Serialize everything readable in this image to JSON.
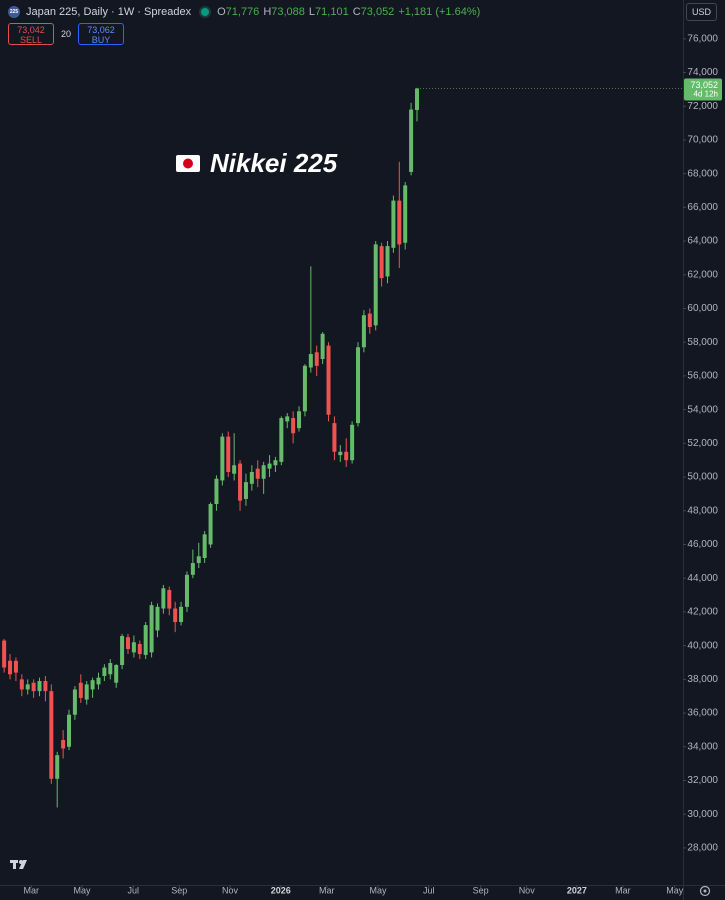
{
  "header": {
    "icon": "225",
    "symbol": "Japan 225, Daily · 1W · Spreadex",
    "ohlc": [
      {
        "label": "O",
        "value": "71,776"
      },
      {
        "label": "H",
        "value": "73,088"
      },
      {
        "label": "L",
        "value": "71,101"
      },
      {
        "label": "C",
        "value": "73,052"
      }
    ],
    "change": "+1,181 (+1.64%)"
  },
  "order_panel": {
    "sell_price": "73,042",
    "sell": "SELL",
    "quantity": "20",
    "buy_price": "73,062",
    "buy": "BUY"
  },
  "chart_data": {
    "type": "candlestick",
    "annotation": "Nikkei 225",
    "currency": "USD",
    "last_price_label": "73,052",
    "countdown": "4d 12h",
    "up_color": "#66bb6a",
    "down_color": "#ef5350",
    "grid": false,
    "x": [
      0,
      1,
      2,
      3,
      4,
      5,
      6,
      7,
      8,
      9,
      10,
      11,
      12,
      13,
      14,
      15,
      16,
      17,
      18,
      19,
      20,
      21,
      22,
      23,
      24,
      25,
      26,
      27,
      28,
      29,
      30,
      31,
      32,
      33,
      34,
      35,
      36,
      37,
      38,
      39,
      40,
      41,
      42,
      43,
      44,
      45,
      46,
      47,
      48,
      49,
      50,
      51,
      52,
      53,
      54,
      55,
      56,
      57,
      58,
      59,
      60,
      61,
      62,
      63,
      64,
      65,
      66,
      67,
      68,
      69,
      70
    ],
    "open": [
      40300,
      39100,
      39100,
      38000,
      37400,
      37800,
      37300,
      37900,
      37300,
      32100,
      34400,
      34000,
      35900,
      37800,
      36800,
      37400,
      37700,
      38200,
      38300,
      37800,
      38850,
      40500,
      39600,
      40100,
      39450,
      39600,
      40900,
      42200,
      43300,
      42200,
      41400,
      42300,
      44200,
      44900,
      45200,
      46000,
      48400,
      49800,
      52400,
      50200,
      50800,
      48700,
      49600,
      50500,
      49900,
      50500,
      50700,
      50900,
      53300,
      53500,
      52900,
      53900,
      56500,
      57400,
      57000,
      57800,
      53200,
      51300,
      51500,
      51000,
      53200,
      57700,
      59700,
      59000,
      63700,
      61900,
      63600,
      66400,
      63900,
      68100,
      71776
    ],
    "high": [
      40400,
      39500,
      39300,
      38300,
      38000,
      38000,
      38100,
      38200,
      37700,
      33700,
      35000,
      36200,
      37600,
      38300,
      37900,
      38100,
      38400,
      38900,
      39200,
      38900,
      40700,
      40700,
      40600,
      40300,
      41400,
      42600,
      42500,
      43600,
      43500,
      42600,
      42600,
      44400,
      45700,
      46100,
      46800,
      48500,
      50100,
      52600,
      52700,
      52600,
      51000,
      50200,
      50700,
      51000,
      50900,
      51300,
      51200,
      53600,
      53800,
      53900,
      54200,
      56700,
      62500,
      57800,
      58600,
      58000,
      53600,
      51900,
      52300,
      53300,
      58000,
      59900,
      60000,
      64000,
      63900,
      64000,
      66700,
      68700,
      67500,
      72200,
      73088
    ],
    "low": [
      38400,
      38000,
      37900,
      37000,
      37100,
      36900,
      37000,
      36700,
      31800,
      30400,
      33300,
      33800,
      35600,
      36600,
      36500,
      36900,
      37400,
      37900,
      38000,
      37500,
      38600,
      39500,
      39300,
      39200,
      39200,
      39300,
      40500,
      41900,
      41800,
      40800,
      41200,
      42000,
      44000,
      44600,
      44900,
      45800,
      48000,
      49500,
      50000,
      49800,
      48000,
      48300,
      49200,
      49400,
      49000,
      50000,
      50300,
      50700,
      52900,
      52000,
      52700,
      53600,
      56200,
      56000,
      56700,
      53300,
      51000,
      50900,
      50600,
      50800,
      53000,
      57400,
      58500,
      58700,
      61300,
      61500,
      63300,
      62400,
      63500,
      67900,
      71101
    ],
    "close": [
      38700,
      38300,
      38400,
      37400,
      37700,
      37300,
      37900,
      37300,
      32100,
      33500,
      33900,
      35900,
      37400,
      36900,
      37700,
      37950,
      38100,
      38700,
      38970,
      38850,
      40570,
      39800,
      40200,
      39500,
      41220,
      42400,
      42300,
      43400,
      42200,
      41400,
      42300,
      44200,
      44900,
      45300,
      46600,
      48400,
      49900,
      52400,
      50300,
      50700,
      48600,
      49700,
      50300,
      49900,
      50700,
      50800,
      51000,
      53500,
      53600,
      52600,
      53900,
      56600,
      57300,
      56600,
      58500,
      53700,
      51500,
      51500,
      51000,
      53100,
      57700,
      59600,
      58900,
      63800,
      61800,
      63700,
      66400,
      63800,
      67300,
      71800,
      73052
    ],
    "xlim": [
      -0.7,
      115.1
    ],
    "xticks": [
      {
        "value": 4.6,
        "label": "Mar"
      },
      {
        "value": 13.2,
        "label": "May"
      },
      {
        "value": 21.9,
        "label": "Jul"
      },
      {
        "value": 29.7,
        "label": "Sep"
      },
      {
        "value": 38.3,
        "label": "Nov"
      },
      {
        "value": 46.9,
        "label": "2026"
      },
      {
        "value": 54.7,
        "label": "Mar"
      },
      {
        "value": 63.4,
        "label": "May"
      },
      {
        "value": 72.0,
        "label": "Jul"
      },
      {
        "value": 80.8,
        "label": "Sep"
      },
      {
        "value": 88.6,
        "label": "Nov"
      },
      {
        "value": 97.1,
        "label": "2027"
      },
      {
        "value": 104.9,
        "label": "Mar"
      },
      {
        "value": 113.7,
        "label": "May"
      }
    ],
    "ylim": [
      25800,
      78300
    ],
    "yticks": [
      {
        "value": 28000,
        "label": "28,000"
      },
      {
        "value": 30000,
        "label": "30,000"
      },
      {
        "value": 32000,
        "label": "32,000"
      },
      {
        "value": 34000,
        "label": "34,000"
      },
      {
        "value": 36000,
        "label": "36,000"
      },
      {
        "value": 38000,
        "label": "38,000"
      },
      {
        "value": 40000,
        "label": "40,000"
      },
      {
        "value": 42000,
        "label": "42,000"
      },
      {
        "value": 44000,
        "label": "44,000"
      },
      {
        "value": 46000,
        "label": "46,000"
      },
      {
        "value": 48000,
        "label": "48,000"
      },
      {
        "value": 50000,
        "label": "50,000"
      },
      {
        "value": 52000,
        "label": "52,000"
      },
      {
        "value": 54000,
        "label": "54,000"
      },
      {
        "value": 56000,
        "label": "56,000"
      },
      {
        "value": 58000,
        "label": "58,000"
      },
      {
        "value": 60000,
        "label": "60,000"
      },
      {
        "value": 62000,
        "label": "62,000"
      },
      {
        "value": 64000,
        "label": "64,000"
      },
      {
        "value": 66000,
        "label": "66,000"
      },
      {
        "value": 68000,
        "label": "68,000"
      },
      {
        "value": 70000,
        "label": "70,000"
      },
      {
        "value": 72000,
        "label": "72,000"
      },
      {
        "value": 74000,
        "label": "74,000"
      },
      {
        "value": 76000,
        "label": "76,000"
      }
    ]
  }
}
